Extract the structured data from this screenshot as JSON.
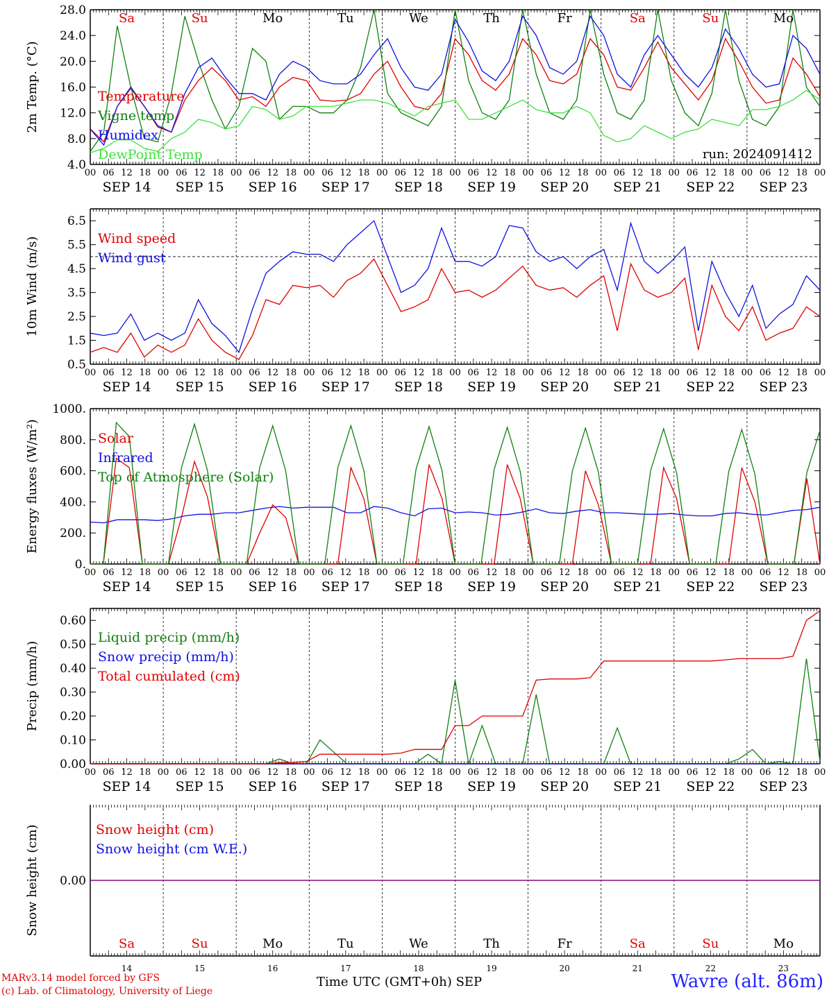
{
  "footer": {
    "credit1": "MARv3.14 model forced by GFS",
    "credit2": "(c) Lab. of Climatology, University of Liege",
    "xtitle": "Time UTC (GMT+0h) SEP",
    "station": "Wavre (alt. 86m)"
  },
  "colors": {
    "red": "#e00000",
    "green": "#108010",
    "blue": "#1010e0",
    "lightgreen": "#40e040",
    "purple": "#800080",
    "weekend": "#e00000"
  },
  "days": [
    "Sa",
    "Su",
    "Mo",
    "Tu",
    "We",
    "Th",
    "Fr",
    "Sa",
    "Su",
    "Mo"
  ],
  "weekend_days": [
    0,
    1,
    7,
    8
  ],
  "dates": [
    "SEP 14",
    "SEP 15",
    "SEP 16",
    "SEP 17",
    "SEP 18",
    "SEP 19",
    "SEP 20",
    "SEP 21",
    "SEP 22",
    "SEP 23"
  ],
  "day_numbers": [
    "14",
    "15",
    "16",
    "17",
    "18",
    "19",
    "20",
    "21",
    "22",
    "23"
  ],
  "hour_ticks": [
    "00",
    "06",
    "12",
    "18"
  ],
  "chart_data": [
    {
      "type": "line",
      "ylabel": "2m Temp. (°C)",
      "ylim": [
        4.0,
        28.0
      ],
      "yticks": [
        "4.0",
        "8.0",
        "12.0",
        "16.0",
        "20.0",
        "24.0",
        "28.0"
      ],
      "annotation": "run: 2024091412",
      "x_hours_step": 6,
      "series": [
        {
          "name": "Temperature",
          "color": "red",
          "values": [
            9.5,
            7.5,
            13,
            15.8,
            13,
            9.8,
            9,
            14,
            17,
            19,
            17,
            14,
            14.5,
            13,
            16,
            17.5,
            17,
            14,
            13.8,
            14,
            15,
            18,
            20,
            16,
            13,
            12.5,
            15,
            23.5,
            21,
            17,
            15.5,
            18,
            23.5,
            21,
            17,
            16.5,
            18,
            23.5,
            21,
            16,
            15.5,
            19,
            23,
            19,
            16.5,
            14,
            17,
            23.5,
            20,
            16,
            13.5,
            14,
            20.5,
            18,
            14.5
          ]
        },
        {
          "name": "Vigne temp",
          "color": "green",
          "values": [
            6,
            9,
            25.5,
            16,
            8,
            7.5,
            15,
            27,
            20,
            14,
            9.5,
            13,
            22,
            20,
            11,
            13,
            13,
            12,
            12,
            14,
            19,
            29,
            15,
            12,
            11,
            10,
            13,
            29,
            17,
            12,
            11,
            14,
            29,
            18,
            12,
            11,
            14,
            29,
            18,
            12,
            11,
            14,
            29,
            17,
            12,
            10,
            15,
            29,
            17,
            11,
            10,
            13,
            29,
            16,
            13
          ]
        },
        {
          "name": "Humidex",
          "color": "blue",
          "values": [
            9.5,
            7,
            13,
            16,
            13,
            10,
            9,
            15,
            19,
            20.5,
            17.5,
            15,
            15,
            14,
            18,
            20,
            19,
            17,
            16.5,
            16.5,
            18,
            21,
            23.5,
            19,
            16,
            15.5,
            18,
            26.5,
            23,
            18.5,
            17,
            20,
            27,
            24,
            19,
            18,
            20,
            27,
            24,
            18,
            16,
            21,
            24,
            21,
            18,
            16,
            19,
            25,
            22,
            18,
            16,
            16.5,
            24,
            22,
            18
          ]
        },
        {
          "name": "DewPoint Temp",
          "color": "lightgreen",
          "values": [
            5.8,
            6.5,
            7.8,
            7.8,
            6.5,
            6,
            8,
            9,
            11,
            10.5,
            9.5,
            10,
            13,
            12.5,
            11,
            11.5,
            13,
            13,
            13,
            13.5,
            14,
            14,
            13.5,
            12.5,
            11.5,
            13,
            13.5,
            14,
            11,
            11,
            12,
            13,
            14,
            12.5,
            12,
            12,
            13,
            12,
            8.5,
            7.5,
            8,
            10,
            9,
            8,
            9,
            9.5,
            11,
            10.5,
            10,
            12.5,
            12.5,
            13,
            14,
            15.5,
            14
          ]
        }
      ]
    },
    {
      "type": "line",
      "ylabel": "10m Wind (m/s)",
      "ylim": [
        0.5,
        7.0
      ],
      "yticks": [
        "0.5",
        "1.5",
        "2.5",
        "3.5",
        "4.5",
        "5.5",
        "6.5"
      ],
      "reference_line": 5.0,
      "x_hours_step": 6,
      "series": [
        {
          "name": "Wind speed",
          "color": "red",
          "values": [
            1.0,
            1.2,
            1.0,
            1.8,
            0.8,
            1.3,
            1.0,
            1.3,
            2.4,
            1.5,
            1.0,
            0.7,
            1.7,
            3.2,
            3.0,
            3.8,
            3.7,
            3.8,
            3.3,
            4.0,
            4.3,
            4.9,
            3.8,
            2.7,
            2.9,
            3.2,
            4.5,
            3.5,
            3.6,
            3.3,
            3.6,
            4.1,
            4.6,
            3.8,
            3.6,
            3.7,
            3.3,
            3.8,
            4.2,
            1.9,
            4.7,
            3.6,
            3.3,
            3.5,
            4.1,
            1.1,
            3.8,
            2.5,
            1.9,
            2.9,
            1.5,
            1.8,
            2.0,
            2.9,
            2.5
          ]
        },
        {
          "name": "Wind gust",
          "color": "blue",
          "values": [
            1.8,
            1.7,
            1.8,
            2.6,
            1.5,
            1.8,
            1.5,
            1.8,
            3.2,
            2.2,
            1.7,
            1.0,
            2.8,
            4.3,
            4.8,
            5.2,
            5.1,
            5.1,
            4.8,
            5.5,
            6.0,
            6.5,
            5.0,
            3.5,
            3.8,
            4.5,
            6.2,
            4.8,
            4.8,
            4.6,
            5.0,
            6.3,
            6.2,
            5.2,
            4.8,
            5.0,
            4.5,
            5.0,
            5.3,
            3.6,
            6.4,
            4.8,
            4.3,
            4.8,
            5.4,
            1.9,
            4.8,
            3.5,
            2.5,
            3.8,
            2.0,
            2.6,
            3.0,
            4.2,
            3.6
          ]
        }
      ]
    },
    {
      "type": "line",
      "ylabel": "Energy fluxes (W/m²)",
      "ylim": [
        0,
        1000
      ],
      "yticks": [
        "0.",
        "200.",
        "400.",
        "600.",
        "800.",
        "1000."
      ],
      "x_hours_step": 6,
      "series": [
        {
          "name": "Solar",
          "color": "red",
          "values": [
            0,
            0,
            680,
            620,
            0,
            0,
            0,
            300,
            660,
            430,
            0,
            0,
            0,
            200,
            380,
            300,
            0,
            0,
            0,
            0,
            620,
            420,
            0,
            0,
            0,
            0,
            640,
            420,
            0,
            0,
            0,
            0,
            640,
            420,
            0,
            0,
            0,
            0,
            600,
            380,
            0,
            0,
            0,
            0,
            620,
            420,
            0,
            0,
            0,
            0,
            620,
            400,
            0,
            0,
            0,
            550,
            0
          ]
        },
        {
          "name": "Infrared",
          "color": "blue",
          "values": [
            270,
            265,
            285,
            285,
            285,
            280,
            290,
            310,
            320,
            320,
            330,
            330,
            345,
            360,
            370,
            360,
            365,
            365,
            365,
            330,
            330,
            370,
            360,
            330,
            310,
            355,
            360,
            330,
            335,
            330,
            315,
            320,
            335,
            355,
            330,
            325,
            340,
            350,
            330,
            330,
            325,
            320,
            320,
            325,
            315,
            310,
            310,
            325,
            330,
            320,
            315,
            330,
            345,
            350,
            365
          ]
        },
        {
          "name": "Top of Atmosphere (Solar)",
          "color": "green",
          "values": [
            0,
            0,
            910,
            820,
            0,
            0,
            0,
            620,
            900,
            600,
            0,
            0,
            0,
            620,
            890,
            600,
            0,
            0,
            0,
            620,
            890,
            600,
            0,
            0,
            0,
            610,
            885,
            600,
            0,
            0,
            0,
            610,
            880,
            595,
            0,
            0,
            0,
            600,
            875,
            590,
            0,
            0,
            0,
            600,
            870,
            585,
            0,
            0,
            0,
            595,
            865,
            580,
            0,
            0,
            0,
            590,
            860
          ]
        }
      ]
    },
    {
      "type": "line",
      "ylabel": "Precip (mm/h)",
      "ylim": [
        0.0,
        0.65
      ],
      "yticks": [
        "0.00",
        "0.10",
        "0.20",
        "0.30",
        "0.40",
        "0.50",
        "0.60"
      ],
      "x_hours_step": 6,
      "series": [
        {
          "name": "Liquid precip (mm/h)",
          "color": "green",
          "values": [
            0,
            0,
            0,
            0,
            0,
            0,
            0,
            0,
            0,
            0,
            0,
            0,
            0,
            0,
            0.02,
            0,
            0,
            0.1,
            0.05,
            0,
            0,
            0,
            0,
            0,
            0,
            0.04,
            0,
            0.35,
            0,
            0.16,
            0,
            0,
            0,
            0.29,
            0,
            0,
            0,
            0,
            0,
            0.15,
            0,
            0,
            0,
            0,
            0,
            0,
            0,
            0,
            0.02,
            0.06,
            0,
            0.01,
            0,
            0.44,
            0.01
          ]
        },
        {
          "name": "Snow precip (mm/h)",
          "color": "blue",
          "values": [
            0,
            0,
            0,
            0,
            0,
            0,
            0,
            0,
            0,
            0,
            0,
            0,
            0,
            0,
            0,
            0,
            0,
            0,
            0,
            0,
            0,
            0,
            0,
            0,
            0,
            0,
            0,
            0,
            0,
            0,
            0,
            0,
            0,
            0,
            0,
            0,
            0,
            0,
            0,
            0,
            0,
            0,
            0,
            0,
            0,
            0,
            0,
            0,
            0,
            0,
            0,
            0,
            0,
            0,
            0
          ]
        },
        {
          "name": "Total cumulated (cm)",
          "color": "red",
          "values": [
            0,
            0,
            0,
            0,
            0,
            0,
            0,
            0,
            0,
            0,
            0,
            0,
            0,
            0,
            0.005,
            0.005,
            0.01,
            0.04,
            0.04,
            0.04,
            0.04,
            0.04,
            0.04,
            0.045,
            0.06,
            0.06,
            0.06,
            0.16,
            0.16,
            0.2,
            0.2,
            0.2,
            0.2,
            0.35,
            0.355,
            0.355,
            0.355,
            0.36,
            0.43,
            0.43,
            0.43,
            0.43,
            0.43,
            0.43,
            0.43,
            0.43,
            0.43,
            0.435,
            0.44,
            0.44,
            0.44,
            0.44,
            0.45,
            0.6,
            0.64
          ]
        }
      ]
    },
    {
      "type": "line",
      "ylabel": "Snow height (cm)",
      "ylim": [
        -1.0,
        1.0
      ],
      "yticks": [
        "0.00"
      ],
      "x_hours_step": 6,
      "series": [
        {
          "name": "Snow height (cm)",
          "color": "red",
          "values": [
            0,
            0
          ]
        },
        {
          "name": "Snow height (cm W.E.)",
          "color": "blue",
          "values": [
            0,
            0
          ]
        }
      ]
    }
  ]
}
